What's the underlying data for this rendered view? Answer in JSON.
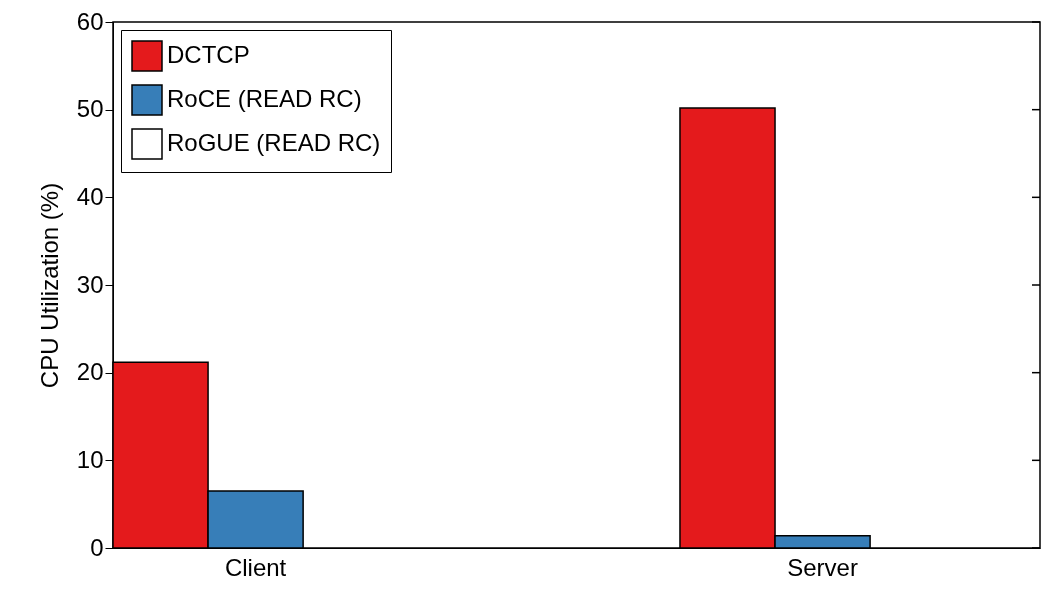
{
  "chart_data": {
    "type": "bar",
    "ylabel": "CPU Utilization (%)",
    "categories": [
      "Client",
      "Server"
    ],
    "series": [
      {
        "name": "DCTCP",
        "color": "#e41a1c",
        "values": [
          21.2,
          50.2
        ]
      },
      {
        "name": "RoCE (READ RC)",
        "color": "#377eb8",
        "values": [
          6.5,
          1.4
        ]
      },
      {
        "name": "RoGUE (READ RC)",
        "color": "#ffffff",
        "values": [
          0,
          0
        ]
      }
    ],
    "ylim": [
      0,
      60
    ],
    "yticks": [
      0,
      10,
      20,
      30,
      40,
      50,
      60
    ],
    "grid": false,
    "legend": "top left"
  }
}
